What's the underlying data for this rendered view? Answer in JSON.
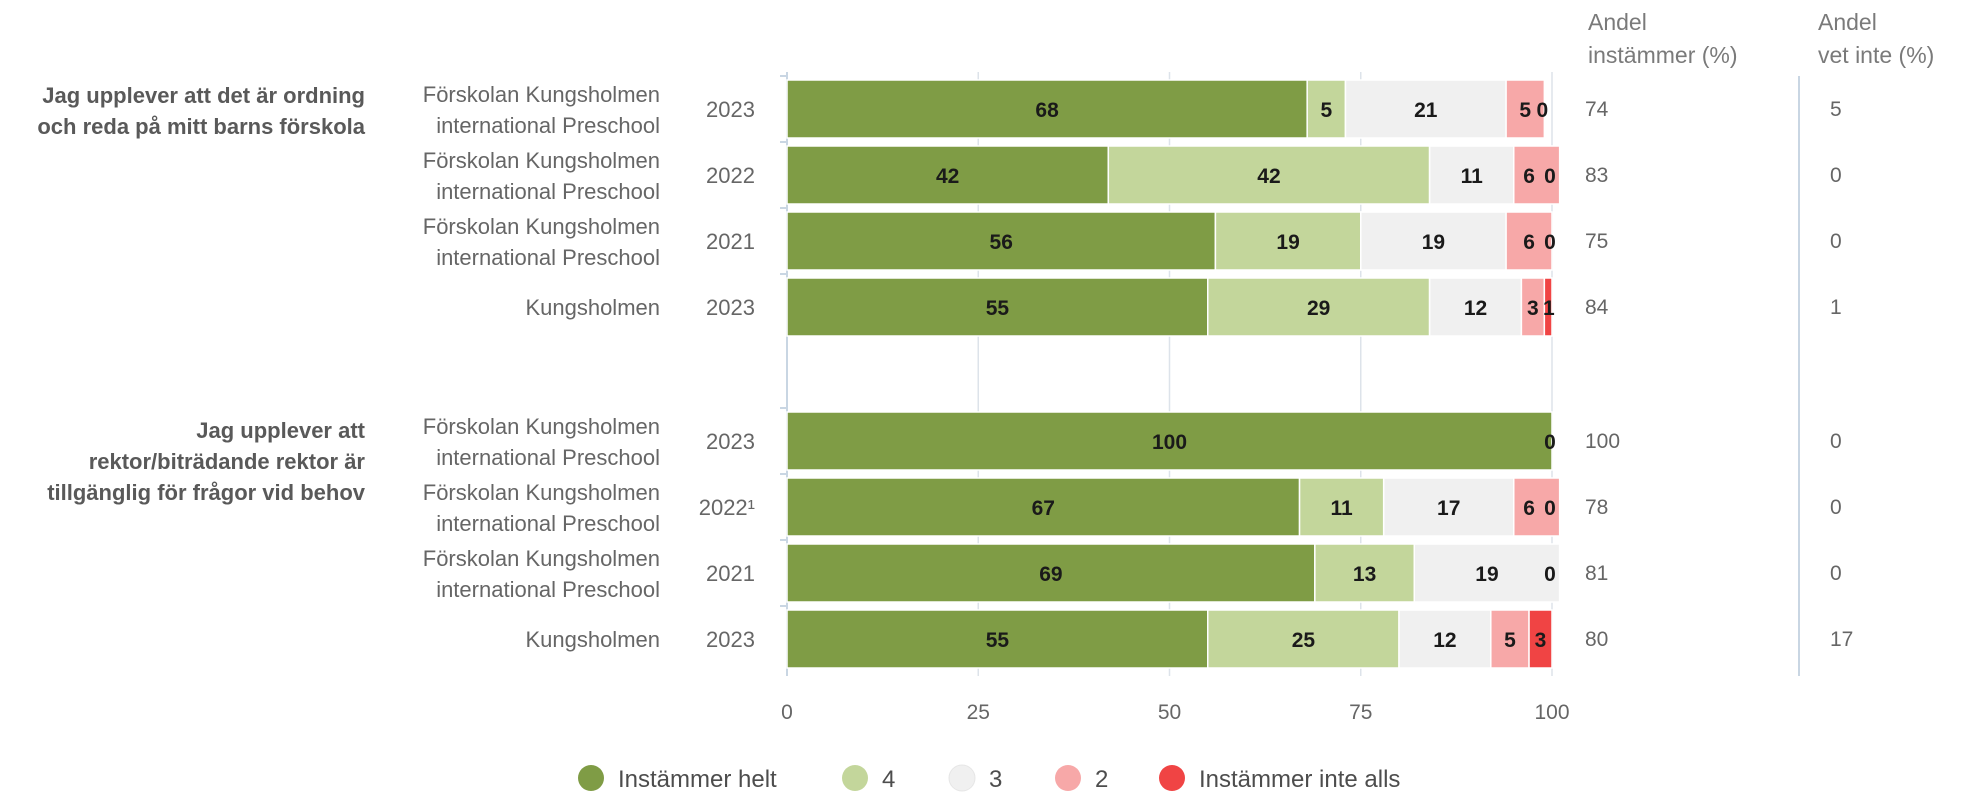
{
  "columns": {
    "agree_header_line1": "Andel",
    "agree_header_line2": "instämmer (%)",
    "dontknow_header_line1": "Andel",
    "dontknow_header_line2": "vet inte (%)"
  },
  "legend": [
    {
      "name": "Instämmer helt",
      "color": "#7f9c45"
    },
    {
      "name": "4",
      "color": "#c3d69b"
    },
    {
      "name": "3",
      "color": "#f0f0f0"
    },
    {
      "name": "2",
      "color": "#f7a8a8"
    },
    {
      "name": "Instämmer inte alls",
      "color": "#f04444"
    }
  ],
  "chart_data": {
    "type": "bar",
    "orientation": "horizontal",
    "stacked": true,
    "xlim": [
      0,
      100
    ],
    "xticks": [
      0,
      25,
      50,
      75,
      100
    ],
    "grid": true,
    "legend_position": "bottom",
    "series_names": [
      "Instämmer helt",
      "4",
      "3",
      "2",
      "Instämmer inte alls"
    ],
    "groups": [
      {
        "question_lines": [
          "Jag upplever att det är ordning",
          "och reda på mitt barns förskola"
        ],
        "rows": [
          {
            "entity_lines": [
              "Förskolan Kungsholmen",
              "international Preschool"
            ],
            "year": "2023",
            "values": [
              68,
              5,
              21,
              5,
              0
            ],
            "labels": [
              "68",
              "5",
              "21",
              "5",
              "0"
            ],
            "agree": "74",
            "dontknow": "5"
          },
          {
            "entity_lines": [
              "Förskolan Kungsholmen",
              "international Preschool"
            ],
            "year": "2022",
            "values": [
              42,
              42,
              11,
              6,
              0
            ],
            "labels": [
              "42",
              "42",
              "11",
              "6",
              "0"
            ],
            "agree": "83",
            "dontknow": "0"
          },
          {
            "entity_lines": [
              "Förskolan Kungsholmen",
              "international Preschool"
            ],
            "year": "2021",
            "values": [
              56,
              19,
              19,
              6,
              0
            ],
            "labels": [
              "56",
              "19",
              "19",
              "6",
              "0"
            ],
            "agree": "75",
            "dontknow": "0"
          },
          {
            "entity_lines": [
              "Kungsholmen"
            ],
            "year": "2023",
            "values": [
              55,
              29,
              12,
              3,
              1
            ],
            "labels": [
              "55",
              "29",
              "12",
              "3",
              "1"
            ],
            "agree": "84",
            "dontknow": "1"
          }
        ]
      },
      {
        "question_lines": [
          "Jag upplever att",
          "rektor/biträdande rektor är",
          "tillgänglig för frågor vid behov"
        ],
        "rows": [
          {
            "entity_lines": [
              "Förskolan Kungsholmen",
              "international Preschool"
            ],
            "year": "2023",
            "values": [
              100,
              0,
              0,
              0,
              0
            ],
            "labels": [
              "100",
              "",
              "",
              "",
              "0"
            ],
            "agree": "100",
            "dontknow": "0"
          },
          {
            "entity_lines": [
              "Förskolan Kungsholmen",
              "international Preschool"
            ],
            "year": "2022¹",
            "values": [
              67,
              11,
              17,
              6,
              0
            ],
            "labels": [
              "67",
              "11",
              "17",
              "6",
              "0"
            ],
            "agree": "78",
            "dontknow": "0"
          },
          {
            "entity_lines": [
              "Förskolan Kungsholmen",
              "international Preschool"
            ],
            "year": "2021",
            "values": [
              69,
              13,
              19,
              0,
              0
            ],
            "labels": [
              "69",
              "13",
              "19",
              "",
              "0"
            ],
            "agree": "81",
            "dontknow": "0"
          },
          {
            "entity_lines": [
              "Kungsholmen"
            ],
            "year": "2023",
            "values": [
              55,
              25,
              12,
              5,
              3
            ],
            "labels": [
              "55",
              "25",
              "12",
              "5",
              "3"
            ],
            "agree": "80",
            "dontknow": "17"
          }
        ]
      }
    ]
  }
}
